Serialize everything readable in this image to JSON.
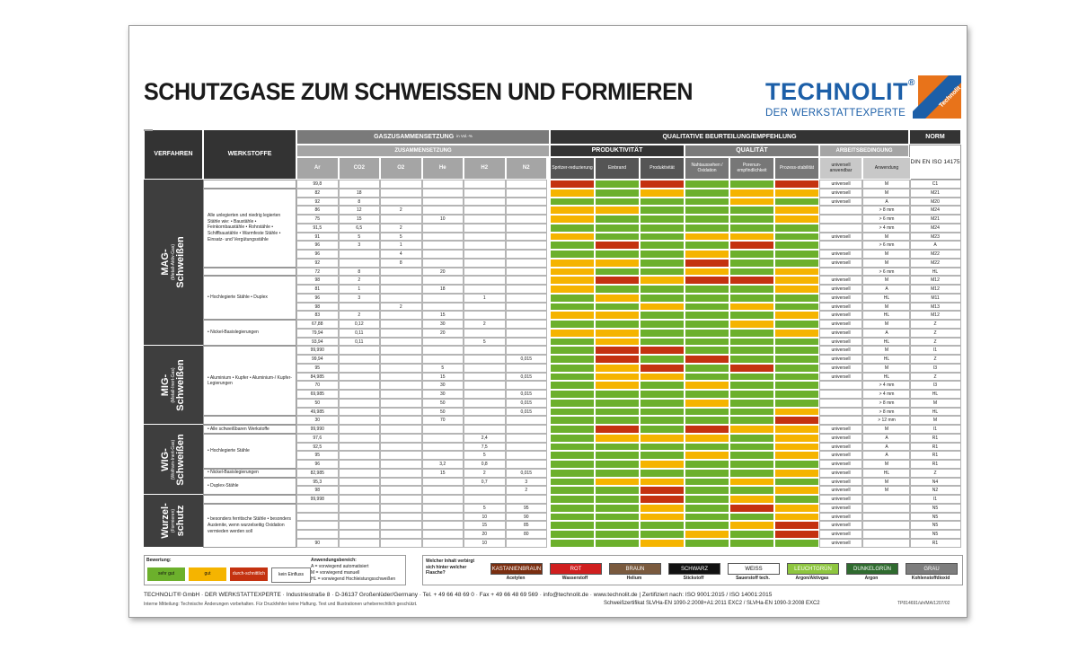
{
  "title": "SCHUTZGASE ZUM SCHWEISSEN UND FORMIEREN",
  "logo": {
    "name": "TECHNOLIT",
    "reg": "®",
    "tagline": "DER WERKSTATTEXPERTE",
    "mark_text": "Technolit",
    "colors": {
      "blue": "#1c5fa8",
      "orange": "#e8731a"
    }
  },
  "colors": {
    "green": "#6cb02c",
    "yellow": "#f5b400",
    "red": "#c43210",
    "header_dark": "#333333",
    "header_mid": "#7a7a7a"
  },
  "headers": {
    "verfahren": "VERFAHREN",
    "werkstoffe": "WERKSTOFFE",
    "gas": "GASZUSAMMENSETZUNG",
    "gas_unit": "in Vol.-%",
    "zus": "ZUSAMMENSETZUNG",
    "qual": "QUALITATIVE BEURTEILUNG/EMPFEHLUNG",
    "norm": "NORM",
    "norm_std": "DIN EN ISO 14175",
    "produktivitaet": "PRODUKTIVITÄT",
    "qualitaet": "QUALITÄT",
    "arbeit": "ARBEITSBEDINGUNG",
    "gas_cols": [
      "Ar",
      "CO2",
      "O2",
      "He",
      "H2",
      "N2"
    ],
    "q_cols": [
      "Spritzer-reduzierung",
      "Einbrand",
      "Produktivität",
      "Nahtaussehen / Oxidation",
      "Porenun-empfindlichkeit",
      "Prozess-stabilität"
    ],
    "a_cols": [
      "universell anwendbar",
      "Anwendung"
    ]
  },
  "sections": [
    {
      "name": "MAG-",
      "sub": "(Metall-Aktiv-Gas)",
      "end": "Schweißen",
      "start": 0,
      "rows": 19
    },
    {
      "name": "MIG-",
      "sub": "(Metall-Inert-Gas)",
      "end": "Schweißen",
      "start": 19,
      "rows": 9
    },
    {
      "name": "WIG-",
      "sub": "(Wolfram-Inert-Gas)",
      "end": "Schweißen",
      "start": 28,
      "rows": 8
    },
    {
      "name": "Wurzel-",
      "sub": "(Formieren)",
      "end": "schutz",
      "start": 36,
      "rows": 6
    }
  ],
  "materials": [
    {
      "start": 1,
      "rows": 9,
      "text": "Alle unlegierten und niedrig legierten Stähle wie: • Baustähle • Feinkornbaustähle • Rohrstähle • Schiffbaustähle • Warmfeste Stähle • Einsatz- und Vergütungsstähle"
    },
    {
      "start": 11,
      "rows": 5,
      "text": "• Hochlegierte Stähle • Duplex"
    },
    {
      "start": 16,
      "rows": 3,
      "text": "• Nickel-Basislegierungen"
    },
    {
      "start": 19,
      "rows": 8,
      "text": "• Aluminium • Kupfer • Aluminium-/ Kupfer-Legierungen"
    },
    {
      "start": 28,
      "rows": 1,
      "text": "• Alle schweißbaren Werkstoffe"
    },
    {
      "start": 29,
      "rows": 4,
      "text": "• Hochlegierte Stähle"
    },
    {
      "start": 33,
      "rows": 1,
      "text": "• Nickel-Basislegierungen"
    },
    {
      "start": 34,
      "rows": 2,
      "text": "• Duplex-Stähle"
    },
    {
      "start": 37,
      "rows": 5,
      "text": "• besonders ferritische Stähle • besonders Austenite, wenn wurzelseitig Oxidation vermieden werden soll"
    }
  ],
  "rows": [
    [
      "99,8",
      "",
      "",
      "",
      "",
      "",
      "r",
      "g",
      "r",
      "g",
      "g",
      "r",
      "universell",
      "M",
      "C1"
    ],
    [
      "82",
      "18",
      "",
      "",
      "",
      "",
      "y",
      "g",
      "y",
      "g",
      "y",
      "y",
      "universell",
      "M",
      "M21"
    ],
    [
      "92",
      "8",
      "",
      "",
      "",
      "",
      "g",
      "g",
      "g",
      "g",
      "y",
      "g",
      "universell",
      "A",
      "M20"
    ],
    [
      "86",
      "12",
      "2",
      "",
      "",
      "",
      "y",
      "y",
      "g",
      "g",
      "g",
      "y",
      "",
      "> 8 mm",
      "M24"
    ],
    [
      "75",
      "15",
      "",
      "10",
      "",
      "",
      "y",
      "g",
      "g",
      "g",
      "g",
      "y",
      "",
      "> 6 mm",
      "M21"
    ],
    [
      "91,5",
      "6,5",
      "2",
      "",
      "",
      "",
      "g",
      "g",
      "g",
      "g",
      "g",
      "g",
      "",
      "> 4 mm",
      "M24"
    ],
    [
      "91",
      "5",
      "5",
      "",
      "",
      "",
      "y",
      "g",
      "g",
      "y",
      "y",
      "g",
      "universell",
      "M",
      "M23"
    ],
    [
      "96",
      "3",
      "1",
      "",
      "",
      "",
      "g",
      "r",
      "g",
      "g",
      "r",
      "g",
      "",
      "> 6 mm",
      "A"
    ],
    [
      "96",
      "",
      "4",
      "",
      "",
      "",
      "g",
      "g",
      "g",
      "y",
      "g",
      "g",
      "universell",
      "M",
      "M22"
    ],
    [
      "92",
      "",
      "8",
      "",
      "",
      "",
      "y",
      "y",
      "g",
      "r",
      "g",
      "g",
      "universell",
      "M",
      "M22"
    ],
    [
      "72",
      "8",
      "",
      "20",
      "",
      "",
      "y",
      "g",
      "g",
      "y",
      "g",
      "y",
      "",
      "> 6 mm",
      "HL"
    ],
    [
      "98",
      "2",
      "",
      "",
      "",
      "",
      "y",
      "r",
      "y",
      "r",
      "r",
      "y",
      "universell",
      "M",
      "M12"
    ],
    [
      "81",
      "1",
      "",
      "18",
      "",
      "",
      "y",
      "g",
      "g",
      "g",
      "g",
      "y",
      "universell",
      "A",
      "M12"
    ],
    [
      "96",
      "3",
      "",
      "",
      "1",
      "",
      "g",
      "y",
      "g",
      "g",
      "g",
      "g",
      "universell",
      "HL",
      "M11"
    ],
    [
      "98",
      "",
      "2",
      "",
      "",
      "",
      "g",
      "g",
      "y",
      "g",
      "y",
      "g",
      "universell",
      "M",
      "M13"
    ],
    [
      "83",
      "2",
      "",
      "15",
      "",
      "",
      "y",
      "y",
      "g",
      "g",
      "g",
      "y",
      "universell",
      "HL",
      "M12"
    ],
    [
      "67,88",
      "0,12",
      "",
      "30",
      "2",
      "",
      "g",
      "g",
      "g",
      "g",
      "y",
      "g",
      "universell",
      "M",
      "Z"
    ],
    [
      "79,94",
      "0,11",
      "",
      "20",
      "",
      "",
      "y",
      "y",
      "g",
      "g",
      "g",
      "y",
      "universell",
      "A",
      "Z"
    ],
    [
      "93,94",
      "0,11",
      "",
      "",
      "5",
      "",
      "g",
      "y",
      "g",
      "g",
      "g",
      "g",
      "universell",
      "HL",
      "Z"
    ],
    [
      "99,990",
      "",
      "",
      "",
      "",
      "",
      "g",
      "r",
      "r",
      "g",
      "g",
      "g",
      "universell",
      "M",
      "I1"
    ],
    [
      "99,94",
      "",
      "",
      "",
      "",
      "0,015",
      "g",
      "r",
      "g",
      "r",
      "g",
      "g",
      "universell",
      "HL",
      "Z"
    ],
    [
      "95",
      "",
      "",
      "5",
      "",
      "",
      "g",
      "y",
      "r",
      "g",
      "r",
      "g",
      "universell",
      "M",
      "I3"
    ],
    [
      "84,985",
      "",
      "",
      "15",
      "",
      "0,015",
      "g",
      "y",
      "y",
      "g",
      "g",
      "g",
      "universell",
      "HL",
      "Z"
    ],
    [
      "70",
      "",
      "",
      "30",
      "",
      "",
      "g",
      "y",
      "g",
      "y",
      "g",
      "g",
      "",
      "> 4 mm",
      "I3"
    ],
    [
      "69,985",
      "",
      "",
      "30",
      "",
      "0,015",
      "g",
      "g",
      "g",
      "g",
      "g",
      "g",
      "",
      "> 4 mm",
      "HL"
    ],
    [
      "50",
      "",
      "",
      "50",
      "",
      "0,015",
      "g",
      "g",
      "g",
      "y",
      "g",
      "g",
      "",
      "> 8 mm",
      "M"
    ],
    [
      "49,985",
      "",
      "",
      "50",
      "",
      "0,015",
      "g",
      "g",
      "g",
      "g",
      "g",
      "y",
      "",
      "> 8 mm",
      "HL"
    ],
    [
      "30",
      "",
      "",
      "70",
      "",
      "",
      "g",
      "g",
      "g",
      "g",
      "g",
      "r",
      "",
      "> 12 mm",
      "M"
    ],
    [
      "99,990",
      "",
      "",
      "",
      "",
      "",
      "g",
      "r",
      "g",
      "r",
      "y",
      "y",
      "universell",
      "M",
      "I1"
    ],
    [
      "97,6",
      "",
      "",
      "",
      "2,4",
      "",
      "g",
      "y",
      "y",
      "y",
      "g",
      "y",
      "universell",
      "A",
      "R1"
    ],
    [
      "92,5",
      "",
      "",
      "",
      "7,5",
      "",
      "g",
      "g",
      "g",
      "g",
      "g",
      "y",
      "universell",
      "A",
      "R1"
    ],
    [
      "95",
      "",
      "",
      "",
      "5",
      "",
      "g",
      "g",
      "g",
      "y",
      "g",
      "y",
      "universell",
      "A",
      "R1"
    ],
    [
      "96",
      "",
      "",
      "3,2",
      "0,8",
      "",
      "g",
      "g",
      "y",
      "g",
      "g",
      "g",
      "universell",
      "M",
      "R1"
    ],
    [
      "82,985",
      "",
      "",
      "15",
      "2",
      "0,015",
      "g",
      "g",
      "g",
      "g",
      "g",
      "y",
      "universell",
      "HL",
      "Z"
    ],
    [
      "95,3",
      "",
      "",
      "",
      "0,7",
      "3",
      "g",
      "y",
      "y",
      "g",
      "y",
      "g",
      "universell",
      "M",
      "N4"
    ],
    [
      "98",
      "",
      "",
      "",
      "",
      "2",
      "g",
      "g",
      "r",
      "g",
      "g",
      "y",
      "universell",
      "M",
      "N2"
    ],
    [
      "99,998",
      "",
      "",
      "",
      "",
      "",
      "g",
      "g",
      "r",
      "g",
      "y",
      "g",
      "universell",
      "",
      "I1"
    ],
    [
      "",
      "",
      "",
      "",
      "5",
      "95",
      "g",
      "g",
      "y",
      "g",
      "r",
      "y",
      "universell",
      "",
      "N5"
    ],
    [
      "",
      "",
      "",
      "",
      "10",
      "90",
      "g",
      "g",
      "y",
      "g",
      "g",
      "y",
      "universell",
      "",
      "N5"
    ],
    [
      "",
      "",
      "",
      "",
      "15",
      "85",
      "g",
      "g",
      "g",
      "g",
      "y",
      "r",
      "universell",
      "",
      "N5"
    ],
    [
      "",
      "",
      "",
      "",
      "20",
      "80",
      "g",
      "g",
      "g",
      "y",
      "g",
      "r",
      "universell",
      "",
      "N5"
    ],
    [
      "90",
      "",
      "",
      "",
      "10",
      "",
      "g",
      "g",
      "y",
      "g",
      "g",
      "g",
      "universell",
      "",
      "R1"
    ]
  ],
  "legend": {
    "bewertung": "Bewertung:",
    "ratings": [
      {
        "label": "sehr gut",
        "color": "#6cb02c"
      },
      {
        "label": "gut",
        "color": "#f5b400"
      },
      {
        "label": "durch-schnittlich",
        "color": "#c43210"
      },
      {
        "label": "kein Einfluss",
        "color": "#ffffff"
      }
    ],
    "anwendung_title": "Anwendungsbereich:",
    "anwendung_lines": [
      "A = vorwiegend automatisiert",
      "M = vorwiegend manuell",
      "HL = vorwiegend Hochleistungsschweißen"
    ],
    "flasche_q": "Welcher Inhalt verbirgt sich hinter welcher Flasche?",
    "caps": [
      {
        "label": "KASTANIENBRAUN",
        "gas": "Acetylen",
        "bg": "#7a2e10"
      },
      {
        "label": "ROT",
        "gas": "Wasserstoff",
        "bg": "#d01f1f"
      },
      {
        "label": "BRAUN",
        "gas": "Helium",
        "bg": "#7a5a3e"
      },
      {
        "label": "SCHWARZ",
        "gas": "Stickstoff",
        "bg": "#111111"
      },
      {
        "label": "WEISS",
        "gas": "Sauerstoff tech.",
        "bg": "#ffffff"
      },
      {
        "label": "LEUCHTGRÜN",
        "gas": "Argon/Aktivgas",
        "bg": "#8ec63f"
      },
      {
        "label": "DUNKELGRÜN",
        "gas": "Argon",
        "bg": "#2f6b2f"
      },
      {
        "label": "GRAU",
        "gas": "Kohlenstoffdioxid",
        "bg": "#7d7d7d"
      }
    ]
  },
  "footer": {
    "line1": "TECHNOLIT® GmbH · DER WERKSTATTEXPERTE · Industriestraße 8 · D-36137 Großenlüder/Germany · Tel. + 49 66 48 69 0 · Fax + 49 66 48 69 569 · info@technolit.de · www.technolit.de | Zertifiziert nach: ISO 9001:2015 / ISO 14001:2015",
    "line2": "Interne Mitteilung: Technische Änderungen vorbehalten. Für Druckfehler keine Haftung. Text und Illustrationen urheberrechtlich geschützt.",
    "line3": "Schweißzertifikat SLVHa-EN 1090-2:2008+A1:2011 EXC2 / SLVHa-EN 1090-3:2008 EXC2",
    "code": "TP814691/uh/MA/1207/02"
  }
}
